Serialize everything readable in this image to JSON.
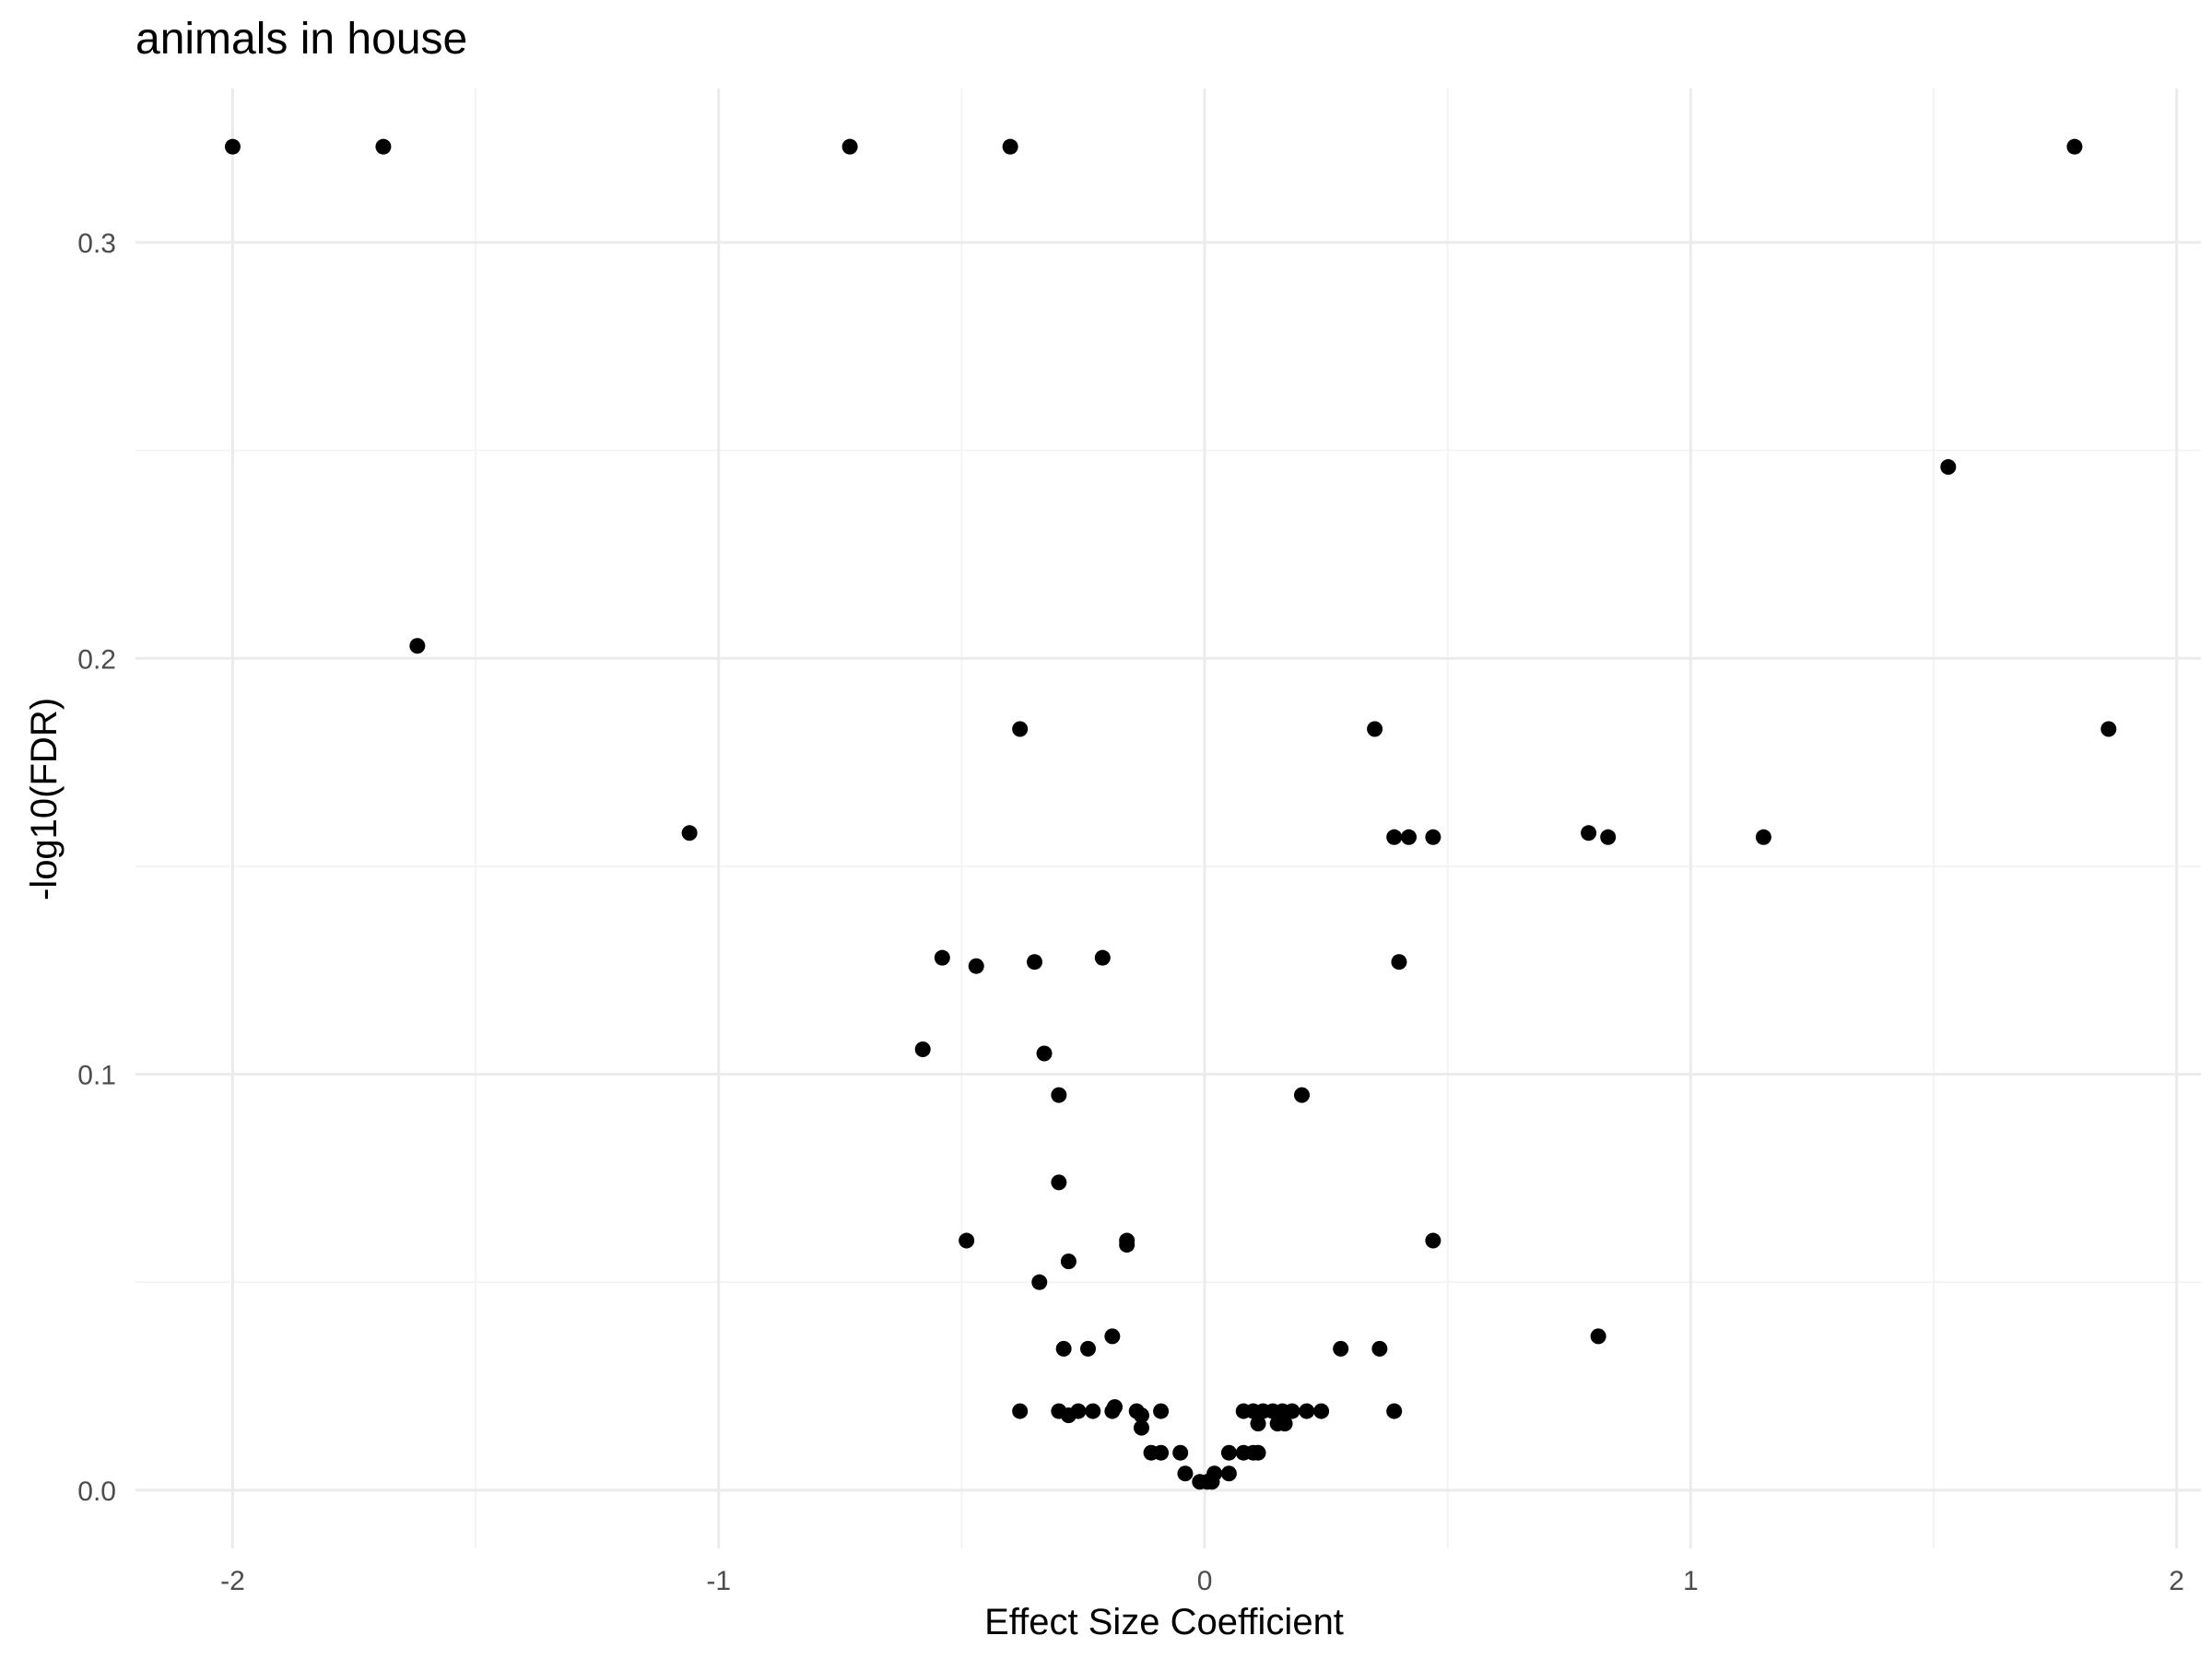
{
  "chart_data": {
    "type": "scatter",
    "title": "animals in house",
    "xlabel": "Effect Size Coefficient",
    "ylabel": "-log10(FDR)",
    "xlim": [
      -2.2,
      2.05
    ],
    "ylim": [
      -0.014,
      0.337
    ],
    "x_ticks": [
      -2,
      -1,
      0,
      1,
      2
    ],
    "x_tick_labels": [
      "-2",
      "-1",
      "0",
      "1",
      "2"
    ],
    "y_ticks": [
      0.0,
      0.1,
      0.2,
      0.3
    ],
    "y_tick_labels": [
      "0.0",
      "0.1",
      "0.2",
      "0.3"
    ],
    "grid": true,
    "point_color": "#000000",
    "points": [
      {
        "x": -2.0,
        "y": 0.323
      },
      {
        "x": -1.69,
        "y": 0.323
      },
      {
        "x": -0.73,
        "y": 0.323
      },
      {
        "x": -0.4,
        "y": 0.323
      },
      {
        "x": 1.79,
        "y": 0.323
      },
      {
        "x": 1.53,
        "y": 0.246
      },
      {
        "x": -1.62,
        "y": 0.203
      },
      {
        "x": -0.38,
        "y": 0.183
      },
      {
        "x": 0.35,
        "y": 0.183
      },
      {
        "x": 1.86,
        "y": 0.183
      },
      {
        "x": -1.06,
        "y": 0.158
      },
      {
        "x": 0.79,
        "y": 0.158
      },
      {
        "x": 0.39,
        "y": 0.157
      },
      {
        "x": 0.42,
        "y": 0.157
      },
      {
        "x": 0.47,
        "y": 0.157
      },
      {
        "x": 0.83,
        "y": 0.157
      },
      {
        "x": 1.15,
        "y": 0.157
      },
      {
        "x": -0.54,
        "y": 0.128
      },
      {
        "x": -0.21,
        "y": 0.128
      },
      {
        "x": -0.47,
        "y": 0.126
      },
      {
        "x": -0.35,
        "y": 0.127
      },
      {
        "x": 0.4,
        "y": 0.127
      },
      {
        "x": -0.58,
        "y": 0.106
      },
      {
        "x": -0.33,
        "y": 0.105
      },
      {
        "x": -0.3,
        "y": 0.095
      },
      {
        "x": 0.2,
        "y": 0.095
      },
      {
        "x": -0.3,
        "y": 0.074
      },
      {
        "x": -0.49,
        "y": 0.06
      },
      {
        "x": -0.16,
        "y": 0.06
      },
      {
        "x": -0.16,
        "y": 0.059
      },
      {
        "x": 0.47,
        "y": 0.06
      },
      {
        "x": -0.28,
        "y": 0.055
      },
      {
        "x": -0.34,
        "y": 0.05
      },
      {
        "x": -0.19,
        "y": 0.037
      },
      {
        "x": 0.81,
        "y": 0.037
      },
      {
        "x": -0.29,
        "y": 0.034
      },
      {
        "x": -0.24,
        "y": 0.034
      },
      {
        "x": 0.28,
        "y": 0.034
      },
      {
        "x": 0.36,
        "y": 0.034
      },
      {
        "x": -0.38,
        "y": 0.019
      },
      {
        "x": -0.3,
        "y": 0.019
      },
      {
        "x": -0.28,
        "y": 0.018
      },
      {
        "x": -0.26,
        "y": 0.019
      },
      {
        "x": -0.23,
        "y": 0.019
      },
      {
        "x": -0.19,
        "y": 0.019
      },
      {
        "x": -0.185,
        "y": 0.02
      },
      {
        "x": -0.14,
        "y": 0.019
      },
      {
        "x": -0.13,
        "y": 0.018
      },
      {
        "x": -0.13,
        "y": 0.015
      },
      {
        "x": -0.09,
        "y": 0.019
      },
      {
        "x": 0.39,
        "y": 0.019
      },
      {
        "x": 0.08,
        "y": 0.019
      },
      {
        "x": 0.1,
        "y": 0.019
      },
      {
        "x": 0.12,
        "y": 0.019
      },
      {
        "x": 0.14,
        "y": 0.019
      },
      {
        "x": 0.16,
        "y": 0.019
      },
      {
        "x": 0.18,
        "y": 0.019
      },
      {
        "x": 0.21,
        "y": 0.019
      },
      {
        "x": 0.24,
        "y": 0.019
      },
      {
        "x": 0.11,
        "y": 0.016
      },
      {
        "x": 0.15,
        "y": 0.016
      },
      {
        "x": 0.165,
        "y": 0.016
      },
      {
        "x": -0.11,
        "y": 0.009
      },
      {
        "x": -0.09,
        "y": 0.009
      },
      {
        "x": -0.05,
        "y": 0.009
      },
      {
        "x": 0.05,
        "y": 0.009
      },
      {
        "x": 0.08,
        "y": 0.009
      },
      {
        "x": 0.1,
        "y": 0.009
      },
      {
        "x": 0.11,
        "y": 0.009
      },
      {
        "x": -0.04,
        "y": 0.004
      },
      {
        "x": 0.05,
        "y": 0.004
      },
      {
        "x": 0.02,
        "y": 0.004
      },
      {
        "x": -0.01,
        "y": 0.002
      },
      {
        "x": 0.005,
        "y": 0.002
      },
      {
        "x": 0.015,
        "y": 0.002
      }
    ]
  }
}
